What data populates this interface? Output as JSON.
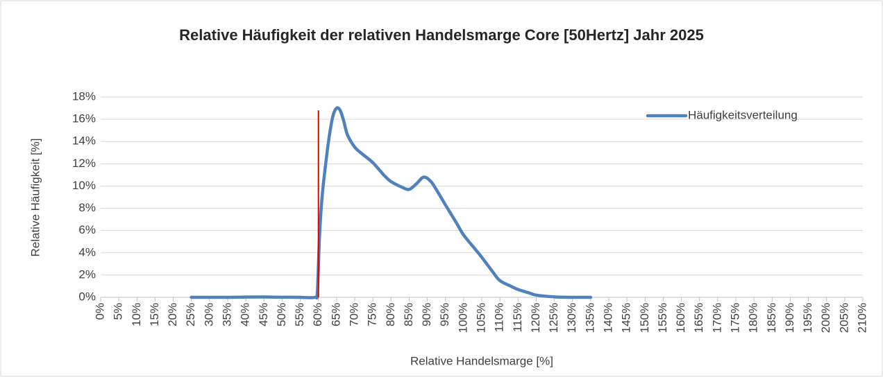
{
  "chart_data": {
    "type": "line",
    "title": "Relative Häufigkeit der relativen Handelsmarge Core [50Hertz] Jahr 2025",
    "x_label": "Relative Handelsmarge [%]",
    "y_label": "Relative Häufigkeit [%]",
    "x": [
      25,
      30,
      35,
      40,
      45,
      50,
      55,
      59,
      59.7,
      60.3,
      61,
      62,
      63,
      64,
      65,
      66,
      67,
      68,
      70,
      72,
      75,
      78,
      80,
      83,
      85,
      87,
      89,
      91,
      93,
      95,
      98,
      100,
      103,
      105,
      108,
      110,
      113,
      115,
      118,
      120,
      125,
      130,
      135
    ],
    "series": [
      {
        "name": "Häufigkeitsverteilung",
        "color": "#4f81bd",
        "values": [
          0,
          0,
          0,
          0.02,
          0.03,
          0.01,
          0,
          0,
          0.5,
          5.5,
          9,
          12,
          14.5,
          16.3,
          17,
          16.8,
          15.8,
          14.6,
          13.5,
          12.9,
          12.1,
          11,
          10.4,
          9.9,
          9.7,
          10.2,
          10.8,
          10.4,
          9.4,
          8.3,
          6.7,
          5.6,
          4.4,
          3.6,
          2.3,
          1.5,
          1,
          0.7,
          0.4,
          0.2,
          0.04,
          0,
          0
        ]
      }
    ],
    "reference_line": {
      "x": 60,
      "y_top": 16.8,
      "color": "#e00000"
    },
    "xlim": [
      0,
      210
    ],
    "xticks": [
      {
        "value": 0,
        "label": "0%"
      },
      {
        "value": 5,
        "label": "5%"
      },
      {
        "value": 10,
        "label": "10%"
      },
      {
        "value": 15,
        "label": "15%"
      },
      {
        "value": 20,
        "label": "20%"
      },
      {
        "value": 25,
        "label": "25%"
      },
      {
        "value": 30,
        "label": "30%"
      },
      {
        "value": 35,
        "label": "35%"
      },
      {
        "value": 40,
        "label": "40%"
      },
      {
        "value": 45,
        "label": "45%"
      },
      {
        "value": 50,
        "label": "50%"
      },
      {
        "value": 55,
        "label": "55%"
      },
      {
        "value": 60,
        "label": "60%"
      },
      {
        "value": 65,
        "label": "65%"
      },
      {
        "value": 70,
        "label": "70%"
      },
      {
        "value": 75,
        "label": "75%"
      },
      {
        "value": 80,
        "label": "80%"
      },
      {
        "value": 85,
        "label": "85%"
      },
      {
        "value": 90,
        "label": "90%"
      },
      {
        "value": 95,
        "label": "95%"
      },
      {
        "value": 100,
        "label": "100%"
      },
      {
        "value": 105,
        "label": "105%"
      },
      {
        "value": 110,
        "label": "110%"
      },
      {
        "value": 115,
        "label": "115%"
      },
      {
        "value": 120,
        "label": "120%"
      },
      {
        "value": 125,
        "label": "125%"
      },
      {
        "value": 130,
        "label": "130%"
      },
      {
        "value": 135,
        "label": "135%"
      },
      {
        "value": 140,
        "label": "140%"
      },
      {
        "value": 145,
        "label": "145%"
      },
      {
        "value": 150,
        "label": "150%"
      },
      {
        "value": 155,
        "label": "155%"
      },
      {
        "value": 160,
        "label": "160%"
      },
      {
        "value": 165,
        "label": "165%"
      },
      {
        "value": 170,
        "label": "170%"
      },
      {
        "value": 175,
        "label": "175%"
      },
      {
        "value": 180,
        "label": "180%"
      },
      {
        "value": 185,
        "label": "185%"
      },
      {
        "value": 190,
        "label": "190%"
      },
      {
        "value": 195,
        "label": "195%"
      },
      {
        "value": 200,
        "label": "200%"
      },
      {
        "value": 205,
        "label": "205%"
      },
      {
        "value": 210,
        "label": "210%"
      }
    ],
    "ylim": [
      0,
      18
    ],
    "yticks": [
      {
        "value": 0,
        "label": "0%"
      },
      {
        "value": 2,
        "label": "2%"
      },
      {
        "value": 4,
        "label": "4%"
      },
      {
        "value": 6,
        "label": "6%"
      },
      {
        "value": 8,
        "label": "8%"
      },
      {
        "value": 10,
        "label": "10%"
      },
      {
        "value": 12,
        "label": "12%"
      },
      {
        "value": 14,
        "label": "14%"
      },
      {
        "value": 16,
        "label": "16%"
      },
      {
        "value": 18,
        "label": "18%"
      }
    ],
    "grid": true,
    "legend": "top-right"
  }
}
